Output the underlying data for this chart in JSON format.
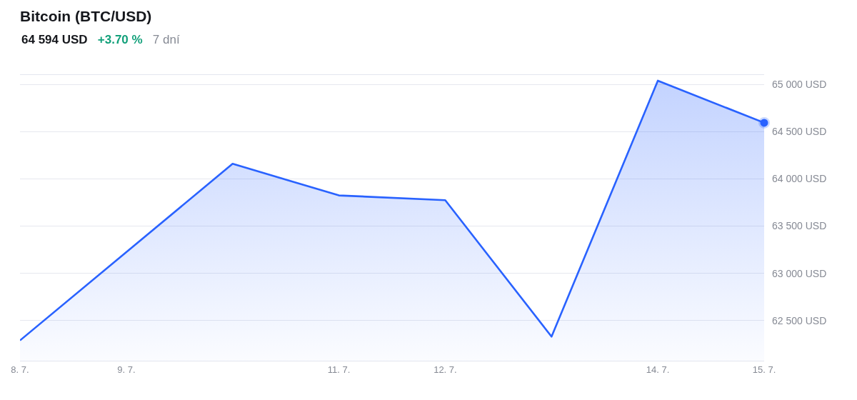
{
  "chart_data": {
    "type": "area",
    "title": "Bitcoin (BTC/USD)",
    "subtitle": "64 594 USD",
    "annotations": [
      "+3.70 %",
      "7 dní"
    ],
    "x": [
      "--07-08",
      "--07-10",
      "--07-11",
      "--07-12",
      "--07-13",
      "--07-14",
      "--07-15"
    ],
    "series": [
      {
        "color": "#2962ff",
        "values": [
          62290,
          64160,
          63825,
          63775,
          62330,
          65040,
          64594
        ]
      },
      {
        "type": "scatter",
        "color": "#2962ff",
        "marker": "circle",
        "x": [
          "--07-15"
        ],
        "values": [
          64594
        ]
      }
    ],
    "xlim": [
      "--07-08",
      "--07-15"
    ],
    "xticks": [
      {
        "value": "--07-08",
        "label": "8. 7."
      },
      {
        "value": "--07-09",
        "label": "9. 7."
      },
      {
        "value": "--07-11",
        "label": "11. 7."
      },
      {
        "value": "--07-12",
        "label": "12. 7."
      },
      {
        "value": "--07-14",
        "label": "14. 7."
      },
      {
        "value": "--07-15",
        "label": "15. 7."
      }
    ],
    "ylim": [
      62075,
      65100
    ],
    "yticks": [
      {
        "value": 62500,
        "label": "62 500 USD"
      },
      {
        "value": 63000,
        "label": "63 000 USD"
      },
      {
        "value": 63500,
        "label": "63 500 USD"
      },
      {
        "value": 64000,
        "label": "64 000 USD"
      },
      {
        "value": 64500,
        "label": "64 500 USD"
      },
      {
        "value": 65000,
        "label": "65 000 USD"
      }
    ],
    "grid": "y"
  }
}
